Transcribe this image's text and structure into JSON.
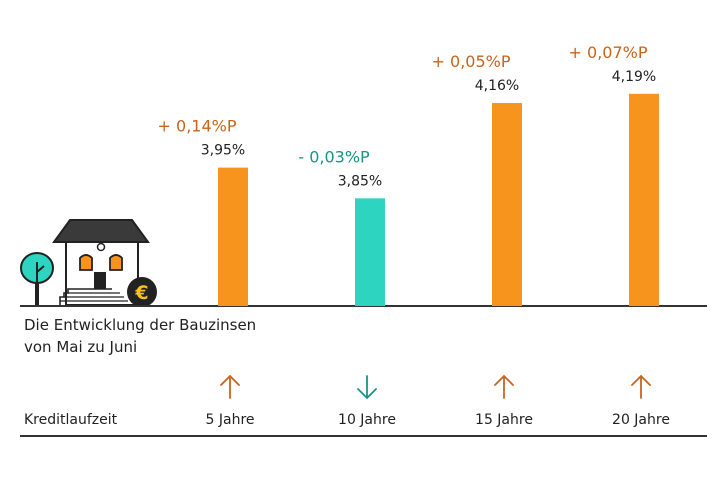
{
  "caption": {
    "line1": "Die Entwicklung der Bauzinsen",
    "line2": "von Mai zu Juni"
  },
  "axis_label": "Kreditlaufzeit",
  "colors": {
    "up": "#f7941d",
    "down": "#2dd4bf",
    "up_text": "#c8641e",
    "down_text": "#17948a",
    "axis": "#333333"
  },
  "chart_data": {
    "type": "bar",
    "categories": [
      "5 Jahre",
      "10 Jahre",
      "15 Jahre",
      "20 Jahre"
    ],
    "values": [
      3.95,
      3.85,
      4.16,
      4.19
    ],
    "value_labels": [
      "3,95%",
      "3,85%",
      "4,16%",
      "4,19%"
    ],
    "changes": [
      "+ 0,14%P",
      "- 0,03%P",
      "+ 0,05%P",
      "+ 0,07%P"
    ],
    "directions": [
      "up",
      "down",
      "up",
      "up"
    ],
    "title": "",
    "xlabel": "Kreditlaufzeit",
    "ylabel": "",
    "ylim": [
      3.5,
      4.3
    ]
  }
}
